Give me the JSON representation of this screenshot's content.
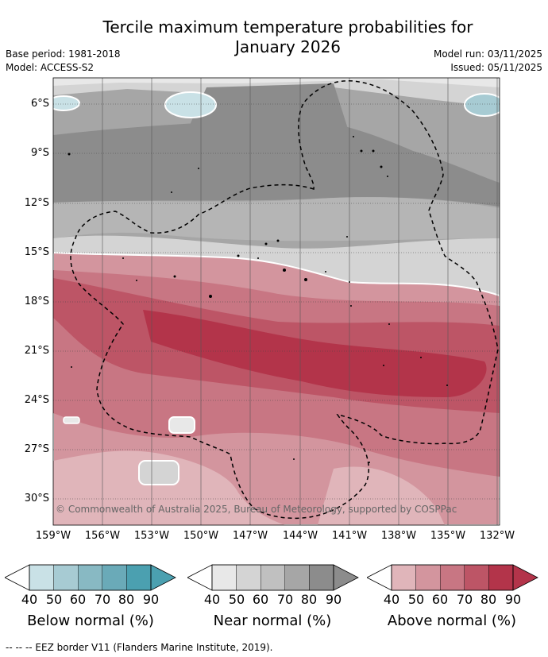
{
  "title": {
    "line1": "Tercile maximum temperature probabilities for",
    "line2": "January 2026"
  },
  "meta": {
    "base_period": "Base period: 1981-2018",
    "model": "Model: ACCESS-S2",
    "model_run": "Model run: 03/11/2025",
    "issued": "Issued: 05/11/2025"
  },
  "map": {
    "latitude_labels": [
      "6°S",
      "9°S",
      "12°S",
      "15°S",
      "18°S",
      "21°S",
      "24°S",
      "27°S",
      "30°S"
    ],
    "longitude_labels": [
      "159°W",
      "156°W",
      "153°W",
      "150°W",
      "147°W",
      "144°W",
      "141°W",
      "138°W",
      "135°W",
      "132°W"
    ],
    "copyright": "© Commonwealth of Australia 2025, Bureau of Meteorology, supported by COSPPac"
  },
  "legend": {
    "ticks": [
      "40",
      "50",
      "60",
      "70",
      "80",
      "90"
    ],
    "colorbars": [
      {
        "label": "Below normal (%)",
        "colors": [
          "#c9e1e6",
          "#a7cbd3",
          "#88b9c3",
          "#6aaab8",
          "#4ba0b0"
        ]
      },
      {
        "label": "Near normal (%)",
        "colors": [
          "#e8e8e8",
          "#d4d4d4",
          "#c0c0c0",
          "#a6a6a6",
          "#8c8c8c"
        ]
      },
      {
        "label": "Above normal (%)",
        "colors": [
          "#e0b5ba",
          "#d3959e",
          "#c87683",
          "#bd5566",
          "#b3344a"
        ]
      }
    ]
  },
  "footer": "--  --  -- EEZ border V11 (Flanders Marine Institute, 2019)."
}
